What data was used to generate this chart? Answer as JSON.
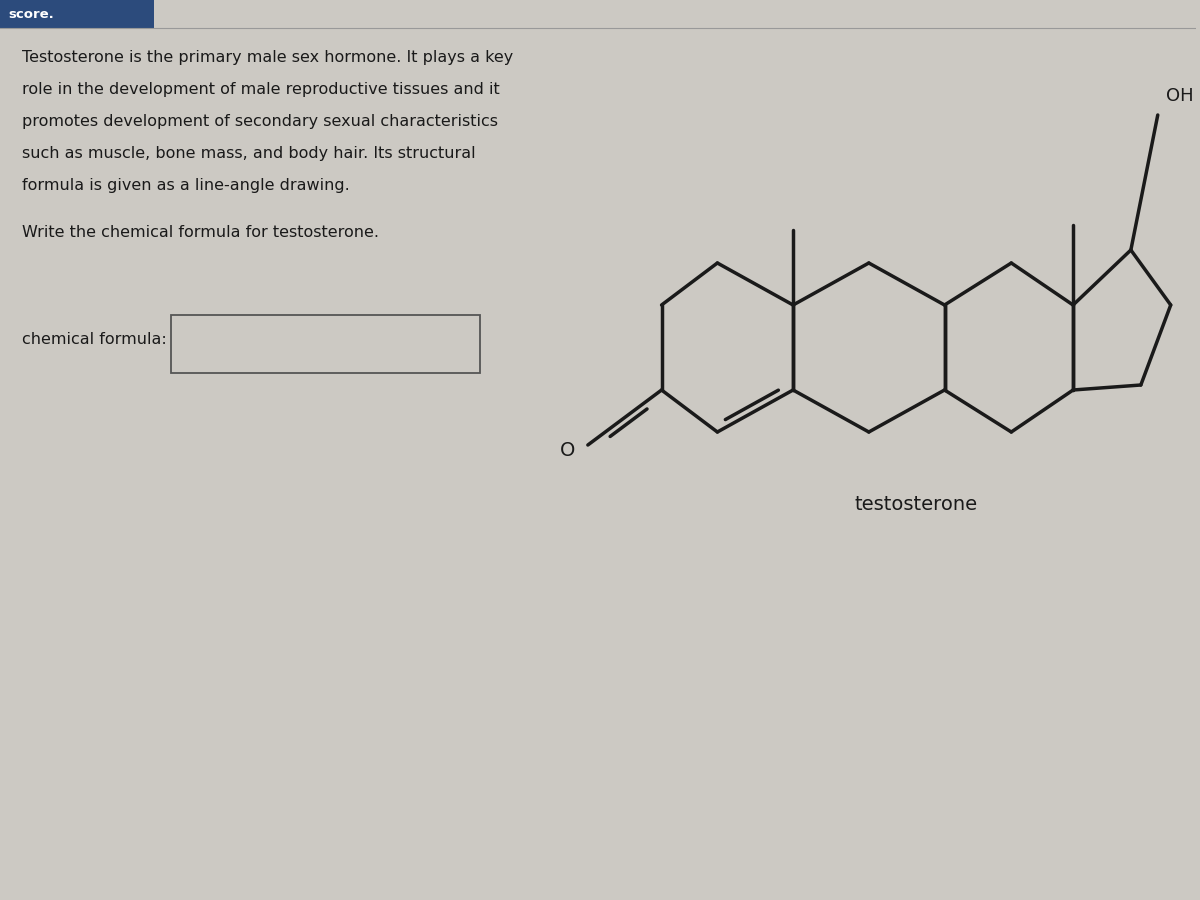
{
  "background_color": "#ccc9c3",
  "header_color": "#2c4b7c",
  "header_text": "score.",
  "paragraph_line1": "Testosterone is the primary male sex hormone. It plays a key",
  "paragraph_line2": "role in the development of male reproductive tissues and it",
  "paragraph_line3": "promotes development of secondary sexual characteristics",
  "paragraph_line4": "such as muscle, bone mass, and body hair. Its structural",
  "paragraph_line5": "formula is given as a line-angle drawing.",
  "question": "Write the chemical formula for testosterone.",
  "label": "chemical formula:",
  "molecule_label": "testosterone",
  "text_color": "#1a1a1a",
  "line_color": "#1a1a1a",
  "box_fill": "#ccc9c3",
  "line_width": 2.5,
  "oh_label": "OH",
  "o_label": "O"
}
